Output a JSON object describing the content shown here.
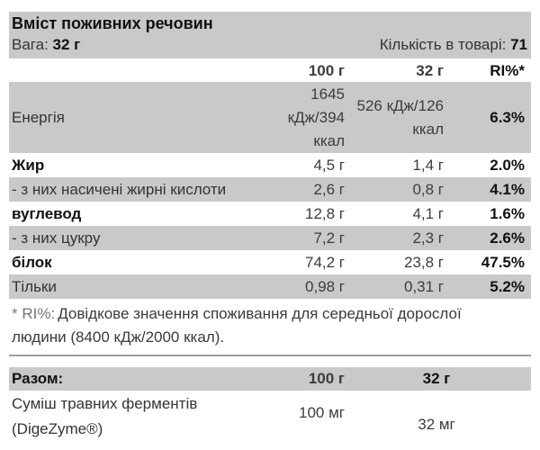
{
  "header": {
    "title": "Вміст поживних речовин",
    "weight_label": "Вага:",
    "weight_value": "32 г",
    "quantity_label": "Кількість в товарі:",
    "quantity_value": "71"
  },
  "table": {
    "columns": [
      "100 г",
      "32 г",
      "RI%*"
    ],
    "rows": [
      {
        "label": "Енергія",
        "bold": false,
        "shade": true,
        "energy": true,
        "v100": "1645 кДж/394 ккал",
        "v32": "526 кДж/126 ккал",
        "ri": "6.3%"
      },
      {
        "label": "Жир",
        "bold": true,
        "shade": false,
        "energy": false,
        "v100": "4,5 г",
        "v32": "1,4 г",
        "ri": "2.0%"
      },
      {
        "label": "- з них насичені жирні кислоти",
        "bold": false,
        "shade": true,
        "energy": false,
        "v100": "2,6 г",
        "v32": "0,8 г",
        "ri": "4.1%"
      },
      {
        "label": "вуглевод",
        "bold": true,
        "shade": false,
        "energy": false,
        "v100": "12,8 г",
        "v32": "4,1 г",
        "ri": "1.6%"
      },
      {
        "label": "- з них цукру",
        "bold": false,
        "shade": true,
        "energy": false,
        "v100": "7,2 г",
        "v32": "2,3 г",
        "ri": "2.6%"
      },
      {
        "label": "білок",
        "bold": true,
        "shade": false,
        "energy": false,
        "v100": "74,2 г",
        "v32": "23,8 г",
        "ri": "47.5%"
      },
      {
        "label": "Тільки",
        "bold": false,
        "shade": true,
        "energy": false,
        "v100": "0,98 г",
        "v32": "0,31 г",
        "ri": "5.2%"
      }
    ]
  },
  "footnote": {
    "prefix": "* RI%:",
    "text": "Довідкове значення споживання для середньої дорослої людини (8400 кДж/2000 ккал)."
  },
  "totals": {
    "label": "Разом:",
    "col1": "100 г",
    "col2": "32 г",
    "rows": [
      {
        "label": "Суміш травних ферментів (DigeZyme®)",
        "v100": "100 мг",
        "v32": "32 мг"
      }
    ]
  }
}
